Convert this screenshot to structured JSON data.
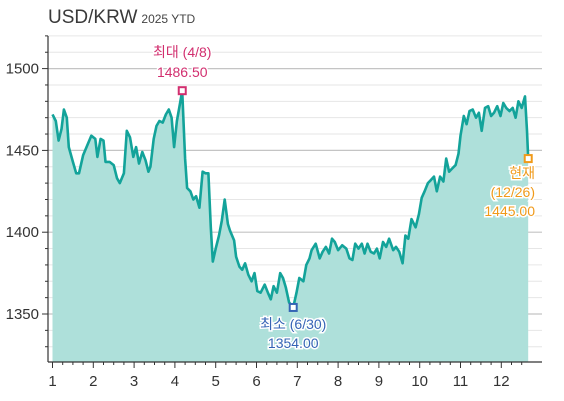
{
  "header": {
    "title": "USD/KRW",
    "subtitle": "2025 YTD"
  },
  "colors": {
    "line": "#13a39a",
    "fill": "#aee0da",
    "max": "#d22f6f",
    "min": "#3564b5",
    "current": "#f09a1a",
    "grid": "#c8c8c8",
    "axis": "#333333"
  },
  "chart_data": {
    "type": "area",
    "title": "USD/KRW",
    "subtitle": "2025 YTD",
    "xlabel": "",
    "ylabel": "",
    "xlim": [
      1,
      12.7
    ],
    "ylim": [
      1330,
      1520
    ],
    "x_ticks": [
      1,
      2,
      3,
      4,
      5,
      6,
      7,
      8,
      9,
      10,
      11,
      12
    ],
    "y_ticks": [
      1350,
      1400,
      1450,
      1500
    ],
    "grid": "horizontal",
    "series": [
      {
        "values": [
          [
            1.0,
            1472
          ],
          [
            1.08,
            1468
          ],
          [
            1.15,
            1456
          ],
          [
            1.22,
            1463
          ],
          [
            1.28,
            1475
          ],
          [
            1.35,
            1470
          ],
          [
            1.4,
            1452
          ],
          [
            1.5,
            1443
          ],
          [
            1.58,
            1436
          ],
          [
            1.65,
            1436
          ],
          [
            1.75,
            1447
          ],
          [
            1.85,
            1453
          ],
          [
            1.95,
            1459
          ],
          [
            2.05,
            1457
          ],
          [
            2.1,
            1446
          ],
          [
            2.18,
            1457
          ],
          [
            2.25,
            1456
          ],
          [
            2.3,
            1443
          ],
          [
            2.4,
            1443
          ],
          [
            2.5,
            1441
          ],
          [
            2.58,
            1433
          ],
          [
            2.65,
            1430
          ],
          [
            2.75,
            1436
          ],
          [
            2.82,
            1462
          ],
          [
            2.9,
            1458
          ],
          [
            2.98,
            1446
          ],
          [
            3.05,
            1452
          ],
          [
            3.12,
            1442
          ],
          [
            3.2,
            1449
          ],
          [
            3.28,
            1444
          ],
          [
            3.35,
            1437
          ],
          [
            3.4,
            1440
          ],
          [
            3.48,
            1457
          ],
          [
            3.55,
            1465
          ],
          [
            3.62,
            1468
          ],
          [
            3.7,
            1467
          ],
          [
            3.78,
            1472
          ],
          [
            3.85,
            1475
          ],
          [
            3.92,
            1470
          ],
          [
            3.98,
            1452
          ],
          [
            4.05,
            1468
          ],
          [
            4.12,
            1478
          ],
          [
            4.18,
            1486.5
          ],
          [
            4.25,
            1445
          ],
          [
            4.3,
            1427
          ],
          [
            4.38,
            1425
          ],
          [
            4.45,
            1420
          ],
          [
            4.52,
            1422
          ],
          [
            4.6,
            1415
          ],
          [
            4.68,
            1437
          ],
          [
            4.75,
            1436
          ],
          [
            4.82,
            1436
          ],
          [
            4.88,
            1403
          ],
          [
            4.93,
            1382
          ],
          [
            5.0,
            1390
          ],
          [
            5.08,
            1398
          ],
          [
            5.15,
            1407
          ],
          [
            5.22,
            1420
          ],
          [
            5.3,
            1405
          ],
          [
            5.35,
            1401
          ],
          [
            5.45,
            1395
          ],
          [
            5.5,
            1385
          ],
          [
            5.58,
            1379
          ],
          [
            5.65,
            1377
          ],
          [
            5.72,
            1381
          ],
          [
            5.8,
            1374
          ],
          [
            5.88,
            1370
          ],
          [
            5.95,
            1375
          ],
          [
            6.02,
            1364
          ],
          [
            6.1,
            1363
          ],
          [
            6.2,
            1368
          ],
          [
            6.28,
            1363
          ],
          [
            6.35,
            1359
          ],
          [
            6.42,
            1367
          ],
          [
            6.5,
            1363
          ],
          [
            6.58,
            1375
          ],
          [
            6.65,
            1372
          ],
          [
            6.72,
            1366
          ],
          [
            6.8,
            1357
          ],
          [
            6.9,
            1354
          ],
          [
            6.98,
            1363
          ],
          [
            7.05,
            1372
          ],
          [
            7.15,
            1370
          ],
          [
            7.22,
            1380
          ],
          [
            7.3,
            1384
          ],
          [
            7.35,
            1389
          ],
          [
            7.45,
            1393
          ],
          [
            7.55,
            1384
          ],
          [
            7.62,
            1388
          ],
          [
            7.7,
            1391
          ],
          [
            7.78,
            1387
          ],
          [
            7.85,
            1396
          ],
          [
            7.92,
            1394
          ],
          [
            8.0,
            1389
          ],
          [
            8.1,
            1392
          ],
          [
            8.2,
            1390
          ],
          [
            8.28,
            1384
          ],
          [
            8.35,
            1383
          ],
          [
            8.42,
            1393
          ],
          [
            8.5,
            1390
          ],
          [
            8.58,
            1393
          ],
          [
            8.65,
            1387
          ],
          [
            8.72,
            1393
          ],
          [
            8.8,
            1388
          ],
          [
            8.88,
            1387
          ],
          [
            8.95,
            1390
          ],
          [
            9.02,
            1384
          ],
          [
            9.1,
            1394
          ],
          [
            9.18,
            1391
          ],
          [
            9.25,
            1396
          ],
          [
            9.35,
            1389
          ],
          [
            9.42,
            1391
          ],
          [
            9.5,
            1388
          ],
          [
            9.58,
            1381
          ],
          [
            9.65,
            1398
          ],
          [
            9.72,
            1396
          ],
          [
            9.8,
            1408
          ],
          [
            9.9,
            1403
          ],
          [
            9.98,
            1411
          ],
          [
            10.05,
            1421
          ],
          [
            10.12,
            1425
          ],
          [
            10.2,
            1430
          ],
          [
            10.28,
            1432
          ],
          [
            10.35,
            1434
          ],
          [
            10.42,
            1425
          ],
          [
            10.5,
            1434
          ],
          [
            10.58,
            1431
          ],
          [
            10.65,
            1445
          ],
          [
            10.72,
            1437
          ],
          [
            10.8,
            1439
          ],
          [
            10.88,
            1441
          ],
          [
            10.95,
            1448
          ],
          [
            11.0,
            1459
          ],
          [
            11.08,
            1471
          ],
          [
            11.15,
            1466
          ],
          [
            11.22,
            1474
          ],
          [
            11.3,
            1475
          ],
          [
            11.38,
            1470
          ],
          [
            11.45,
            1473
          ],
          [
            11.52,
            1462
          ],
          [
            11.6,
            1476
          ],
          [
            11.68,
            1477
          ],
          [
            11.75,
            1471
          ],
          [
            11.82,
            1473
          ],
          [
            11.9,
            1477
          ],
          [
            11.98,
            1471
          ],
          [
            12.05,
            1479
          ],
          [
            12.12,
            1476
          ],
          [
            12.2,
            1474
          ],
          [
            12.28,
            1476
          ],
          [
            12.35,
            1470
          ],
          [
            12.42,
            1480
          ],
          [
            12.5,
            1476
          ],
          [
            12.58,
            1483
          ],
          [
            12.63,
            1462
          ],
          [
            12.66,
            1445
          ]
        ]
      }
    ],
    "annotations": [
      {
        "kind": "max",
        "x": 4.18,
        "y": 1486.5,
        "label": "최대 (4/8)",
        "value_label": "1486.50"
      },
      {
        "kind": "min",
        "x": 6.9,
        "y": 1354.0,
        "label": "최소 (6/30)",
        "value_label": "1354.00"
      },
      {
        "kind": "current",
        "x": 12.66,
        "y": 1445.0,
        "label": "현재",
        "date_label": "(12/26)",
        "value_label": "1445.00"
      }
    ]
  }
}
